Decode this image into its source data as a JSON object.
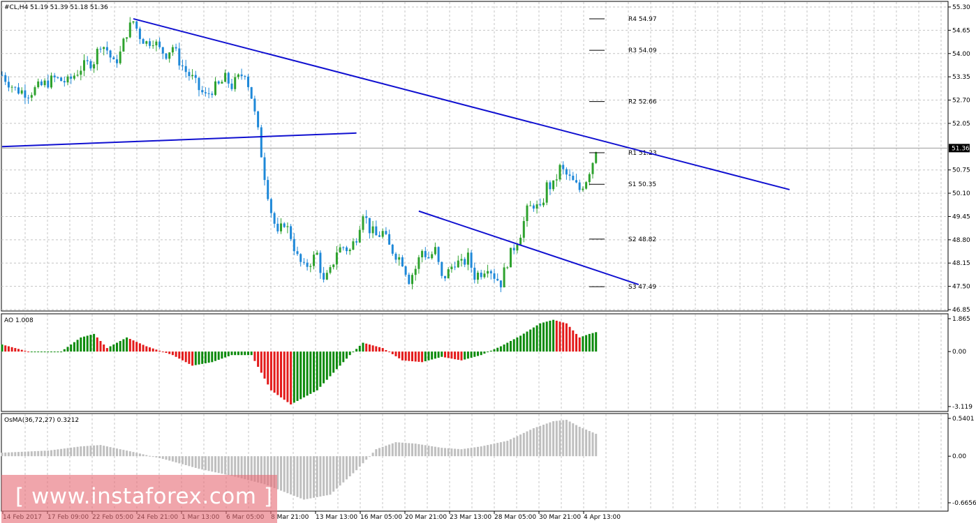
{
  "chart_data": [
    {
      "type": "candlestick",
      "symbol_label": "#CL,H4  51.19 51.39 51.18 51.36",
      "price_axis": {
        "ticks": [
          "55.30",
          "54.65",
          "54.00",
          "53.35",
          "52.70",
          "52.05",
          "51.36",
          "50.75",
          "50.10",
          "49.45",
          "48.80",
          "48.15",
          "47.50",
          "46.85"
        ],
        "current_price": "51.36",
        "ylim": [
          46.85,
          55.3
        ]
      },
      "time_axis": {
        "ticks": [
          "14 Feb 2017",
          "17 Feb 09:00",
          "22 Feb 05:00",
          "24 Feb 21:00",
          "1 Mar 13:00",
          "6 Mar 05:00",
          "8 Mar 21:00",
          "13 Mar 13:00",
          "16 Mar 05:00",
          "20 Mar 21:00",
          "23 Mar 13:00",
          "28 Mar 05:00",
          "30 Mar 21:00",
          "4 Apr 13:00"
        ]
      },
      "pivot_levels": [
        {
          "label": "R4 54.97",
          "value": 54.97
        },
        {
          "label": "R3 54.09",
          "value": 54.09
        },
        {
          "label": "R2 52.66",
          "value": 52.66
        },
        {
          "label": "R1 51.23",
          "value": 51.23
        },
        {
          "label": "S1 50.35",
          "value": 50.35
        },
        {
          "label": "S2 48.82",
          "value": 48.82
        },
        {
          "label": "S3 47.49",
          "value": 47.49
        }
      ],
      "close_path": [
        [
          0,
          53.4
        ],
        [
          4,
          53.0
        ],
        [
          8,
          52.9
        ],
        [
          12,
          53.1
        ],
        [
          16,
          53.3
        ],
        [
          20,
          53.2
        ],
        [
          24,
          53.6
        ],
        [
          28,
          53.8
        ],
        [
          30,
          54.3
        ],
        [
          32,
          54.1
        ],
        [
          34,
          53.7
        ],
        [
          36,
          54.0
        ],
        [
          38,
          54.6
        ],
        [
          40,
          54.9
        ],
        [
          42,
          54.5
        ],
        [
          44,
          54.3
        ],
        [
          46,
          54.4
        ],
        [
          48,
          54.1
        ],
        [
          50,
          54.0
        ],
        [
          52,
          54.2
        ],
        [
          54,
          53.8
        ],
        [
          56,
          53.5
        ],
        [
          58,
          53.3
        ],
        [
          60,
          53.0
        ],
        [
          62,
          52.8
        ],
        [
          64,
          53.0
        ],
        [
          66,
          53.1
        ],
        [
          68,
          53.3
        ],
        [
          70,
          53.1
        ],
        [
          72,
          53.3
        ],
        [
          74,
          53.5
        ],
        [
          76,
          52.8
        ],
        [
          78,
          51.8
        ],
        [
          80,
          50.6
        ],
        [
          82,
          49.6
        ],
        [
          84,
          48.9
        ],
        [
          86,
          49.3
        ],
        [
          88,
          48.9
        ],
        [
          90,
          48.3
        ],
        [
          92,
          48.0
        ],
        [
          94,
          48.2
        ],
        [
          96,
          48.4
        ],
        [
          98,
          47.6
        ],
        [
          100,
          47.9
        ],
        [
          102,
          48.5
        ],
        [
          104,
          48.6
        ],
        [
          106,
          48.5
        ],
        [
          108,
          48.9
        ],
        [
          110,
          49.6
        ],
        [
          112,
          49.1
        ],
        [
          114,
          48.9
        ],
        [
          116,
          49.0
        ],
        [
          118,
          48.6
        ],
        [
          120,
          48.4
        ],
        [
          122,
          48.2
        ],
        [
          124,
          47.7
        ],
        [
          126,
          48.0
        ],
        [
          128,
          48.5
        ],
        [
          130,
          48.3
        ],
        [
          132,
          48.5
        ],
        [
          134,
          47.7
        ],
        [
          136,
          47.9
        ],
        [
          138,
          48.2
        ],
        [
          140,
          48.1
        ],
        [
          142,
          48.3
        ],
        [
          144,
          47.8
        ],
        [
          146,
          47.9
        ],
        [
          148,
          48.1
        ],
        [
          150,
          47.8
        ],
        [
          152,
          47.6
        ],
        [
          154,
          48.2
        ],
        [
          156,
          48.6
        ],
        [
          158,
          49.0
        ],
        [
          160,
          49.6
        ],
        [
          162,
          49.8
        ],
        [
          164,
          49.6
        ],
        [
          166,
          50.3
        ],
        [
          168,
          50.3
        ],
        [
          170,
          50.8
        ],
        [
          172,
          50.6
        ],
        [
          174,
          50.4
        ],
        [
          176,
          50.2
        ],
        [
          178,
          50.5
        ],
        [
          180,
          51.0
        ],
        [
          181,
          51.36
        ]
      ],
      "trendlines": [
        {
          "from": [
            40,
            54.97
          ],
          "to": [
            240,
            50.2
          ]
        },
        {
          "from": [
            0,
            51.4
          ],
          "to": [
            108,
            51.78
          ]
        },
        {
          "from": [
            127,
            49.6
          ],
          "to": [
            194,
            47.55
          ]
        }
      ]
    },
    {
      "type": "bar",
      "label": "AO 1.008",
      "ticks": [
        "1.865",
        "0.00",
        "-3.119"
      ],
      "ylim": [
        -3.119,
        1.865
      ]
    },
    {
      "type": "bar",
      "label": "OsMA(36,72,27) 0.3212",
      "ticks": [
        "0.5401",
        "0.00",
        "-0.6656"
      ],
      "ylim": [
        -0.6656,
        0.5401
      ]
    }
  ],
  "watermark": "[ www.instaforex.com ]",
  "colors": {
    "up": "#2ea22e",
    "down": "#1e88d8",
    "trend": "#1010d0",
    "ao_up": "#0b8a0b",
    "ao_down": "#e31a1a",
    "osma": "#bfbfbf",
    "grid": "#c4c4c4"
  }
}
